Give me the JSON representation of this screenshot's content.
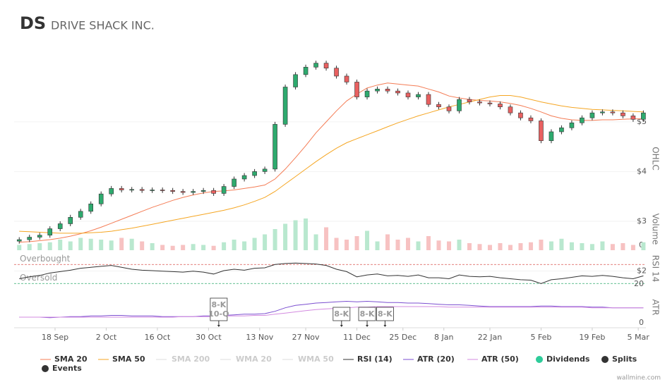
{
  "header": {
    "ticker": "DS",
    "name": "DRIVE SHACK INC."
  },
  "footer": "wallmine.com",
  "chart_data": {
    "type": "candlestick",
    "axis_labels": [
      "OHLC",
      "Volume",
      "RSI 14",
      "ATR"
    ],
    "x": [
      -7,
      -5,
      -3,
      -1,
      1,
      3,
      5,
      7,
      9,
      11,
      13,
      15,
      17,
      19,
      21,
      23,
      25,
      27,
      29,
      31,
      33,
      35,
      37,
      39,
      41,
      43,
      45,
      47,
      49,
      51,
      53,
      55,
      57,
      59,
      61,
      63,
      65,
      67,
      69,
      71,
      73,
      75,
      77,
      79,
      81,
      83,
      85,
      87,
      89,
      91,
      93,
      95,
      97,
      99,
      101,
      103,
      105,
      107,
      109,
      111,
      113,
      115
    ],
    "xlim": [
      -8,
      115.5
    ],
    "xticks": [
      {
        "value": 0,
        "label": "18 Sep"
      },
      {
        "value": 10,
        "label": "2 Oct"
      },
      {
        "value": 20,
        "label": "16 Oct"
      },
      {
        "value": 30,
        "label": "30 Oct"
      },
      {
        "value": 40,
        "label": "13 Nov"
      },
      {
        "value": 49,
        "label": "27 Nov"
      },
      {
        "value": 59,
        "label": "11 Dec"
      },
      {
        "value": 68,
        "label": "25 Dec"
      },
      {
        "value": 76,
        "label": "8 Jan"
      },
      {
        "value": 85,
        "label": "22 Jan"
      },
      {
        "value": 95,
        "label": "5 Feb"
      },
      {
        "value": 105,
        "label": "19 Feb"
      },
      {
        "value": 114,
        "label": "5 Mar"
      }
    ],
    "ylim": [
      1.61,
      6.6
    ],
    "yticks": [
      {
        "value": 2,
        "label": "$2"
      },
      {
        "value": 3,
        "label": "$3"
      },
      {
        "value": 4,
        "label": "$4"
      },
      {
        "value": 5,
        "label": "$5"
      }
    ],
    "grid": true,
    "up_color": "#2eaa6e",
    "down_color": "#e86060",
    "open": [
      2.6,
      2.63,
      2.68,
      2.72,
      2.85,
      2.95,
      3.08,
      3.2,
      3.35,
      3.55,
      3.66,
      3.63,
      3.64,
      3.62,
      3.63,
      3.62,
      3.6,
      3.58,
      3.6,
      3.62,
      3.56,
      3.7,
      3.85,
      3.92,
      4.0,
      4.05,
      4.95,
      5.7,
      5.95,
      6.1,
      6.18,
      6.08,
      5.92,
      5.8,
      5.5,
      5.62,
      5.66,
      5.62,
      5.58,
      5.5,
      5.55,
      5.35,
      5.3,
      5.22,
      5.45,
      5.4,
      5.38,
      5.36,
      5.3,
      5.18,
      5.08,
      5.02,
      4.62,
      4.8,
      4.88,
      4.98,
      5.08,
      5.18,
      5.2,
      5.18,
      5.12,
      5.05
    ],
    "high": [
      2.68,
      2.73,
      2.77,
      2.9,
      3.0,
      3.13,
      3.25,
      3.4,
      3.6,
      3.71,
      3.71,
      3.69,
      3.69,
      3.68,
      3.68,
      3.67,
      3.65,
      3.65,
      3.67,
      3.67,
      3.75,
      3.9,
      3.97,
      4.05,
      4.1,
      5.0,
      5.75,
      6.0,
      6.15,
      6.23,
      6.23,
      6.13,
      5.97,
      5.85,
      5.67,
      5.71,
      5.71,
      5.67,
      5.63,
      5.6,
      5.6,
      5.4,
      5.35,
      5.5,
      5.5,
      5.45,
      5.43,
      5.41,
      5.35,
      5.23,
      5.13,
      5.07,
      4.85,
      4.93,
      5.03,
      5.13,
      5.23,
      5.25,
      5.25,
      5.23,
      5.17,
      5.23
    ],
    "low": [
      2.55,
      2.58,
      2.63,
      2.67,
      2.8,
      2.9,
      3.03,
      3.15,
      3.3,
      3.5,
      3.58,
      3.58,
      3.57,
      3.57,
      3.57,
      3.55,
      3.53,
      3.53,
      3.55,
      3.51,
      3.51,
      3.65,
      3.8,
      3.87,
      3.95,
      4.0,
      4.9,
      5.65,
      5.9,
      6.05,
      6.03,
      5.87,
      5.75,
      5.45,
      5.45,
      5.57,
      5.57,
      5.53,
      5.45,
      5.45,
      5.3,
      5.25,
      5.17,
      5.17,
      5.35,
      5.33,
      5.31,
      5.25,
      5.13,
      5.03,
      4.97,
      4.57,
      4.57,
      4.75,
      4.83,
      4.93,
      5.03,
      5.13,
      5.13,
      5.07,
      5.0,
      5.0
    ],
    "close": [
      2.63,
      2.68,
      2.72,
      2.85,
      2.95,
      3.08,
      3.2,
      3.35,
      3.55,
      3.66,
      3.63,
      3.64,
      3.62,
      3.63,
      3.62,
      3.6,
      3.58,
      3.6,
      3.62,
      3.56,
      3.7,
      3.85,
      3.92,
      4.0,
      4.05,
      4.95,
      5.7,
      5.95,
      6.1,
      6.18,
      6.08,
      5.92,
      5.8,
      5.5,
      5.62,
      5.66,
      5.62,
      5.58,
      5.5,
      5.55,
      5.35,
      5.3,
      5.22,
      5.45,
      5.4,
      5.38,
      5.36,
      5.3,
      5.18,
      5.08,
      5.02,
      4.62,
      4.8,
      4.88,
      4.98,
      5.08,
      5.18,
      5.2,
      5.18,
      5.12,
      5.05,
      5.18
    ],
    "volume": [
      300,
      350,
      400,
      450,
      600,
      500,
      700,
      650,
      600,
      550,
      700,
      650,
      500,
      400,
      300,
      250,
      300,
      350,
      300,
      250,
      450,
      600,
      500,
      700,
      900,
      1200,
      1500,
      1700,
      1800,
      900,
      1300,
      700,
      600,
      800,
      1100,
      500,
      900,
      600,
      700,
      500,
      800,
      550,
      500,
      600,
      400,
      350,
      300,
      400,
      300,
      400,
      450,
      600,
      500,
      650,
      450,
      400,
      350,
      500,
      350,
      400,
      300,
      450
    ],
    "volume_ylim": [
      0,
      2000
    ],
    "volume_yticks": [
      0
    ],
    "rsi_ylim": [
      20,
      100
    ],
    "rsi_yticks": [
      20
    ],
    "rsi_levels": [
      {
        "value": 70,
        "label": "Overbought",
        "color": "#d9534f"
      },
      {
        "value": 30,
        "label": "Oversold",
        "color": "#2eaa6e"
      }
    ],
    "atr_ylim": [
      0,
      0.6
    ],
    "atr_yticks": [
      0
    ],
    "series": [
      {
        "name": "SMA 20",
        "color": "#f47c55",
        "axis": "price",
        "values": [
          2.58,
          2.59,
          2.61,
          2.63,
          2.66,
          2.7,
          2.75,
          2.81,
          2.88,
          2.96,
          3.04,
          3.12,
          3.2,
          3.28,
          3.35,
          3.42,
          3.48,
          3.53,
          3.57,
          3.6,
          3.61,
          3.63,
          3.66,
          3.69,
          3.73,
          3.85,
          4.05,
          4.28,
          4.52,
          4.78,
          5.0,
          5.22,
          5.42,
          5.56,
          5.68,
          5.74,
          5.78,
          5.76,
          5.74,
          5.72,
          5.66,
          5.6,
          5.52,
          5.48,
          5.45,
          5.43,
          5.42,
          5.4,
          5.37,
          5.33,
          5.27,
          5.2,
          5.12,
          5.07,
          5.04,
          5.03,
          5.03,
          5.04,
          5.04,
          5.05,
          5.06,
          5.06
        ]
      },
      {
        "name": "SMA 50",
        "color": "#f5a623",
        "axis": "price",
        "values": [
          2.8,
          2.79,
          2.78,
          2.77,
          2.76,
          2.76,
          2.76,
          2.77,
          2.78,
          2.8,
          2.83,
          2.86,
          2.9,
          2.94,
          2.98,
          3.02,
          3.06,
          3.1,
          3.14,
          3.18,
          3.22,
          3.27,
          3.33,
          3.4,
          3.48,
          3.6,
          3.75,
          3.9,
          4.05,
          4.2,
          4.34,
          4.47,
          4.58,
          4.66,
          4.74,
          4.82,
          4.9,
          4.98,
          5.05,
          5.12,
          5.18,
          5.24,
          5.3,
          5.35,
          5.4,
          5.45,
          5.5,
          5.53,
          5.53,
          5.5,
          5.45,
          5.4,
          5.36,
          5.32,
          5.29,
          5.27,
          5.25,
          5.24,
          5.23,
          5.22,
          5.21,
          5.2
        ]
      },
      {
        "name": "RSI (14)",
        "color": "#333333",
        "axis": "rsi",
        "values": [
          40,
          44,
          47,
          52,
          55,
          58,
          62,
          64,
          66,
          68,
          64,
          60,
          58,
          57,
          56,
          55,
          54,
          56,
          54,
          50,
          57,
          60,
          58,
          62,
          63,
          70,
          72,
          73,
          72,
          71,
          68,
          60,
          55,
          44,
          48,
          50,
          46,
          47,
          45,
          48,
          42,
          42,
          40,
          48,
          45,
          44,
          45,
          42,
          40,
          38,
          37,
          30,
          38,
          40,
          43,
          46,
          45,
          47,
          45,
          42,
          40,
          46
        ]
      },
      {
        "name": "ATR (20)",
        "color": "#7b4fd0",
        "axis": "atr",
        "values": [
          0.12,
          0.12,
          0.12,
          0.11,
          0.12,
          0.13,
          0.13,
          0.14,
          0.14,
          0.15,
          0.15,
          0.14,
          0.14,
          0.14,
          0.13,
          0.13,
          0.13,
          0.13,
          0.14,
          0.14,
          0.15,
          0.16,
          0.17,
          0.17,
          0.18,
          0.22,
          0.28,
          0.32,
          0.34,
          0.36,
          0.37,
          0.38,
          0.39,
          0.38,
          0.39,
          0.38,
          0.37,
          0.37,
          0.36,
          0.36,
          0.35,
          0.34,
          0.33,
          0.33,
          0.32,
          0.31,
          0.3,
          0.3,
          0.3,
          0.3,
          0.3,
          0.31,
          0.31,
          0.3,
          0.3,
          0.3,
          0.29,
          0.29,
          0.28,
          0.28,
          0.28,
          0.28
        ]
      },
      {
        "name": "ATR (50)",
        "color": "#d38be0",
        "axis": "atr",
        "values": [
          0.12,
          0.12,
          0.12,
          0.12,
          0.12,
          0.12,
          0.12,
          0.12,
          0.12,
          0.12,
          0.12,
          0.12,
          0.12,
          0.12,
          0.12,
          0.12,
          0.13,
          0.13,
          0.13,
          0.13,
          0.14,
          0.14,
          0.14,
          0.15,
          0.15,
          0.17,
          0.19,
          0.21,
          0.23,
          0.25,
          0.26,
          0.27,
          0.28,
          0.29,
          0.29,
          0.3,
          0.3,
          0.3,
          0.3,
          0.3,
          0.3,
          0.3,
          0.29,
          0.29,
          0.29,
          0.29,
          0.29,
          0.29,
          0.29,
          0.29,
          0.29,
          0.29,
          0.29,
          0.29,
          0.29,
          0.29,
          0.28,
          0.28,
          0.28,
          0.28,
          0.28,
          0.28
        ]
      }
    ],
    "inactive_indicators": [
      "SMA 200",
      "WMA 20",
      "WMA 50"
    ],
    "markers": [
      {
        "name": "Dividends",
        "color": "#2ecc9a"
      },
      {
        "name": "Splits",
        "color": "#333333"
      },
      {
        "name": "Events",
        "color": "#333333"
      }
    ],
    "events": [
      {
        "x": 32,
        "labels": [
          "8-K",
          "10-Q"
        ]
      },
      {
        "x": 56,
        "labels": [
          "8-K"
        ]
      },
      {
        "x": 61,
        "labels": [
          "8-K"
        ]
      },
      {
        "x": 64.5,
        "labels": [
          "8-K"
        ]
      }
    ]
  }
}
